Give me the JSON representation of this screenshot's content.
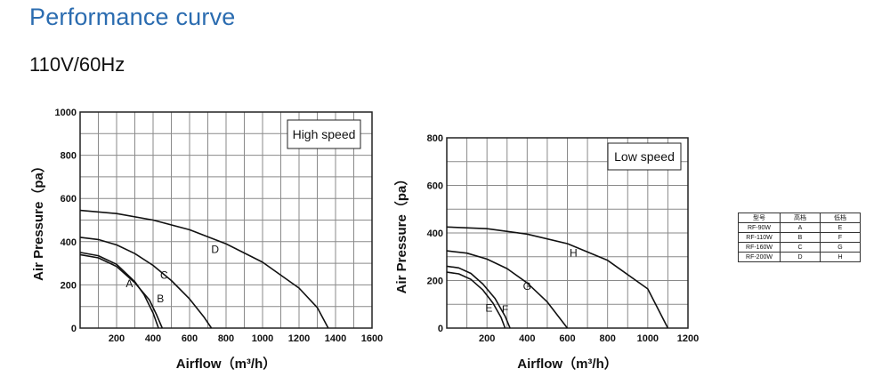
{
  "header": {
    "title": "Performance curve",
    "subtitle": "110V/60Hz"
  },
  "chart_data": [
    {
      "type": "line",
      "legend": "High speed",
      "xlabel": "Airflow（m³/h）",
      "ylabel": "Air Pressure（pa）",
      "xlim": [
        0,
        1600
      ],
      "ylim": [
        0,
        1000
      ],
      "xticks": [
        200,
        400,
        600,
        800,
        1000,
        1200,
        1400,
        1600
      ],
      "yticks": [
        0,
        200,
        400,
        600,
        800,
        1000
      ],
      "grid": true,
      "series": [
        {
          "name": "A",
          "label_at": [
            270,
            205
          ],
          "x": [
            0,
            100,
            200,
            300,
            350,
            400,
            430
          ],
          "y": [
            350,
            335,
            295,
            215,
            155,
            70,
            0
          ]
        },
        {
          "name": "B",
          "label_at": [
            440,
            135
          ],
          "x": [
            0,
            100,
            200,
            300,
            380,
            420,
            450
          ],
          "y": [
            340,
            325,
            285,
            210,
            130,
            60,
            0
          ]
        },
        {
          "name": "C",
          "label_at": [
            460,
            245
          ],
          "x": [
            0,
            100,
            200,
            300,
            400,
            500,
            600,
            680,
            720
          ],
          "y": [
            420,
            410,
            385,
            345,
            290,
            220,
            135,
            50,
            0
          ]
        },
        {
          "name": "D",
          "label_at": [
            740,
            365
          ],
          "x": [
            0,
            200,
            400,
            600,
            800,
            1000,
            1200,
            1300,
            1360
          ],
          "y": [
            545,
            530,
            500,
            455,
            390,
            305,
            185,
            95,
            0
          ]
        }
      ]
    },
    {
      "type": "line",
      "legend": "Low speed",
      "xlabel": "Airflow（m³/h）",
      "ylabel": "Air Pressure（pa）",
      "xlim": [
        0,
        1200
      ],
      "ylim": [
        0,
        800
      ],
      "xticks": [
        200,
        400,
        600,
        800,
        1000,
        1200
      ],
      "yticks": [
        0,
        200,
        400,
        600,
        800
      ],
      "grid": true,
      "series": [
        {
          "name": "E",
          "label_at": [
            210,
            85
          ],
          "x": [
            0,
            60,
            120,
            180,
            230,
            270,
            290
          ],
          "y": [
            235,
            228,
            205,
            160,
            105,
            45,
            0
          ]
        },
        {
          "name": "F",
          "label_at": [
            290,
            78
          ],
          "x": [
            0,
            60,
            120,
            180,
            240,
            290,
            315
          ],
          "y": [
            260,
            253,
            230,
            185,
            125,
            50,
            0
          ]
        },
        {
          "name": "G",
          "label_at": [
            400,
            175
          ],
          "x": [
            0,
            100,
            200,
            300,
            400,
            500,
            600
          ],
          "y": [
            325,
            315,
            290,
            250,
            190,
            110,
            0
          ]
        },
        {
          "name": "H",
          "label_at": [
            630,
            315
          ],
          "x": [
            0,
            200,
            400,
            600,
            800,
            1000,
            1100
          ],
          "y": [
            425,
            418,
            395,
            355,
            285,
            165,
            0
          ]
        }
      ]
    }
  ],
  "model_table": {
    "headers": [
      "型号",
      "高档",
      "低档"
    ],
    "rows": [
      [
        "RF-90W",
        "A",
        "E"
      ],
      [
        "RF-110W",
        "B",
        "F"
      ],
      [
        "RF-160W",
        "C",
        "G"
      ],
      [
        "RF-200W",
        "D",
        "H"
      ]
    ]
  }
}
